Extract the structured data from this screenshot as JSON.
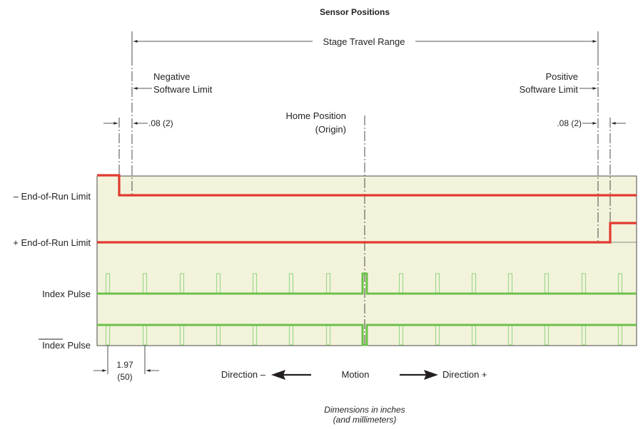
{
  "title": "Sensor Positions",
  "travel": {
    "label": "Stage Travel Range"
  },
  "negative_limit": {
    "line1": "Negative",
    "line2": "Software Limit"
  },
  "positive_limit": {
    "line1": "Positive",
    "line2": "Software Limit"
  },
  "home": {
    "line1": "Home Position",
    "line2": "(Origin)"
  },
  "left_offset": ".08 (2)",
  "right_offset": ".08 (2)",
  "rows": {
    "neg_eor": "– End-of-Run Limit",
    "pos_eor": "+ End-of-Run Limit",
    "index": "Index Pulse",
    "index_bar": "Index Pulse"
  },
  "pitch": {
    "inches": "1.97",
    "mm": "(50)"
  },
  "motion": {
    "neg": "Direction –",
    "center": "Motion",
    "pos": "Direction +"
  },
  "note": {
    "line1": "Dimensions in inches",
    "line2": "(and millimeters)"
  },
  "colors": {
    "panel": "#f3f3dc",
    "limit": "#e03a2f",
    "pulse": "#6cc04a",
    "pulse_light": "#9ed88a",
    "ink": "#231f20"
  }
}
